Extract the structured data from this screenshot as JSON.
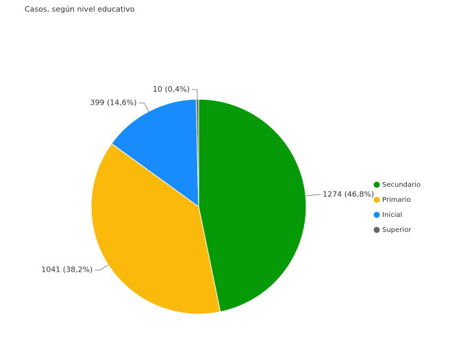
{
  "chart_data": {
    "type": "pie",
    "title": "Casos, según nivel educativo",
    "categories": [
      "Secundario",
      "Primario",
      "Inicial",
      "Superior"
    ],
    "values": [
      1274,
      1041,
      399,
      10
    ],
    "value_labels": [
      "1274 (46,8%)",
      "1041 (38,2%)",
      "399 (14,6%)",
      "10 (0,4%)"
    ],
    "colors": [
      "#069a08",
      "#fbb90c",
      "#198cfd",
      "#676767"
    ],
    "legend": "right"
  }
}
